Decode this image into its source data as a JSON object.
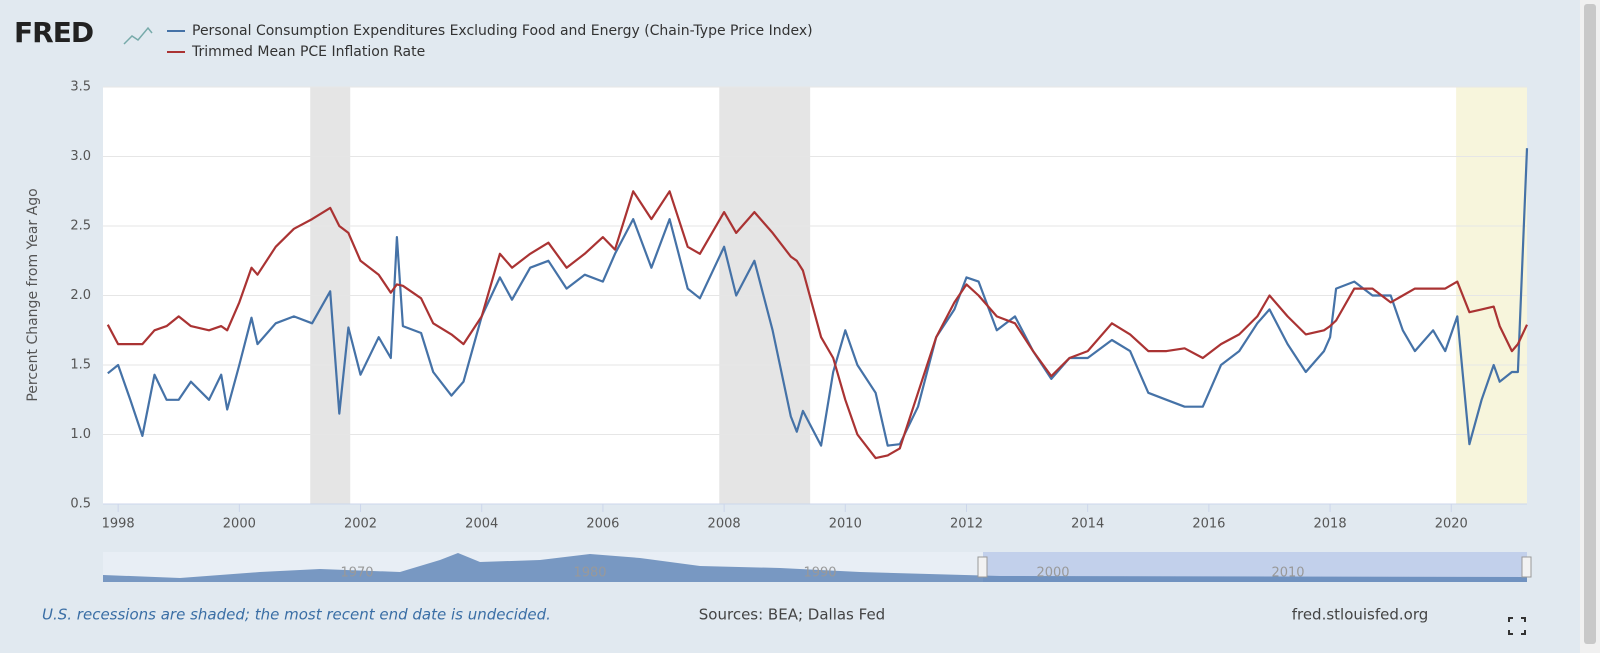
{
  "brand": "FRED",
  "chart_data": {
    "type": "line",
    "y_axis_label": "Percent Change from Year Ago",
    "x": [
      1997.83,
      1998.0,
      1998.2,
      1998.4,
      1998.6,
      1998.8,
      1999.0,
      1999.2,
      1999.5,
      1999.7,
      1999.8,
      2000.0,
      2000.2,
      2000.3,
      2000.6,
      2000.9,
      2001.2,
      2001.5,
      2001.65,
      2001.8,
      2002.0,
      2002.3,
      2002.5,
      2002.6,
      2002.7,
      2003.0,
      2003.2,
      2003.5,
      2003.7,
      2004.0,
      2004.3,
      2004.5,
      2004.8,
      2005.1,
      2005.4,
      2005.7,
      2006.0,
      2006.2,
      2006.5,
      2006.8,
      2007.1,
      2007.4,
      2007.6,
      2008.0,
      2008.2,
      2008.5,
      2008.8,
      2009.1,
      2009.2,
      2009.3,
      2009.6,
      2009.8,
      2010.0,
      2010.2,
      2010.5,
      2010.7,
      2010.9,
      2011.2,
      2011.5,
      2011.8,
      2012.0,
      2012.2,
      2012.5,
      2012.8,
      2013.1,
      2013.4,
      2013.7,
      2014.0,
      2014.4,
      2014.7,
      2015.0,
      2015.3,
      2015.6,
      2015.9,
      2016.2,
      2016.5,
      2016.8,
      2017.0,
      2017.3,
      2017.6,
      2017.9,
      2018.0,
      2018.1,
      2018.4,
      2018.7,
      2019.0,
      2019.2,
      2019.4,
      2019.7,
      2019.9,
      2020.1,
      2020.3,
      2020.5,
      2020.7,
      2020.8,
      2021.0,
      2021.1,
      2021.25
    ],
    "series": [
      {
        "name": "Personal Consumption Expenditures Excluding Food and Energy (Chain-Type Price Index)",
        "color": "#4572a7",
        "values": [
          1.44,
          1.5,
          1.25,
          0.99,
          1.43,
          1.25,
          1.25,
          1.38,
          1.25,
          1.43,
          1.18,
          1.5,
          1.84,
          1.65,
          1.8,
          1.85,
          1.8,
          2.03,
          1.15,
          1.77,
          1.43,
          1.7,
          1.55,
          2.42,
          1.78,
          1.73,
          1.45,
          1.28,
          1.38,
          1.85,
          2.13,
          1.97,
          2.2,
          2.25,
          2.05,
          2.15,
          2.1,
          2.3,
          2.55,
          2.2,
          2.55,
          2.05,
          1.98,
          2.35,
          2.0,
          2.25,
          1.75,
          1.13,
          1.02,
          1.17,
          0.92,
          1.45,
          1.75,
          1.5,
          1.3,
          0.92,
          0.93,
          1.2,
          1.7,
          1.9,
          2.13,
          2.1,
          1.75,
          1.85,
          1.6,
          1.4,
          1.55,
          1.55,
          1.68,
          1.6,
          1.3,
          1.25,
          1.2,
          1.2,
          1.5,
          1.6,
          1.8,
          1.9,
          1.65,
          1.45,
          1.6,
          1.7,
          2.05,
          2.1,
          2.0,
          2.0,
          1.75,
          1.6,
          1.75,
          1.6,
          1.85,
          0.93,
          1.25,
          1.5,
          1.38,
          1.45,
          1.45,
          3.06
        ]
      },
      {
        "name": "Trimmed Mean PCE Inflation Rate",
        "color": "#aa3333",
        "values": [
          1.79,
          1.65,
          1.65,
          1.65,
          1.75,
          1.78,
          1.85,
          1.78,
          1.75,
          1.78,
          1.75,
          1.95,
          2.2,
          2.15,
          2.35,
          2.48,
          2.55,
          2.63,
          2.5,
          2.45,
          2.25,
          2.15,
          2.02,
          2.08,
          2.07,
          1.98,
          1.8,
          1.72,
          1.65,
          1.85,
          2.3,
          2.2,
          2.3,
          2.38,
          2.2,
          2.3,
          2.42,
          2.33,
          2.75,
          2.55,
          2.75,
          2.35,
          2.3,
          2.6,
          2.45,
          2.6,
          2.45,
          2.28,
          2.25,
          2.18,
          1.7,
          1.55,
          1.25,
          1.0,
          0.83,
          0.85,
          0.9,
          1.3,
          1.7,
          1.95,
          2.08,
          2.0,
          1.85,
          1.8,
          1.6,
          1.42,
          1.55,
          1.6,
          1.8,
          1.72,
          1.6,
          1.6,
          1.62,
          1.55,
          1.65,
          1.72,
          1.85,
          2.0,
          1.85,
          1.72,
          1.75,
          1.78,
          1.82,
          2.05,
          2.05,
          1.95,
          2.0,
          2.05,
          2.05,
          2.05,
          2.1,
          1.88,
          1.9,
          1.92,
          1.78,
          1.6,
          1.65,
          1.79
        ]
      }
    ],
    "xlim": [
      1997.75,
      2021.25
    ],
    "xticks": [
      1998,
      2000,
      2002,
      2004,
      2006,
      2008,
      2010,
      2012,
      2014,
      2016,
      2018,
      2020
    ],
    "ylim": [
      0.5,
      3.5
    ],
    "yticks": [
      0.5,
      {
        "value": 1,
        "label": "1.0"
      },
      1.5,
      {
        "value": 2,
        "label": "2.0"
      },
      2.5,
      {
        "value": 3,
        "label": "3.0"
      },
      3.5
    ],
    "grid": true,
    "recessions": [
      [
        2001.17,
        2001.83
      ],
      [
        2007.92,
        2009.42
      ]
    ],
    "current_period": [
      2020.08,
      2021.25
    ]
  },
  "navigator": {
    "labels": [
      "1970",
      "1980",
      "1990",
      "2000",
      "2010"
    ]
  },
  "footer": {
    "note": "U.S. recessions are shaded; the most recent end date is undecided.",
    "sources": "Sources: BEA; Dallas Fed",
    "url": "fred.stlouisfed.org"
  }
}
